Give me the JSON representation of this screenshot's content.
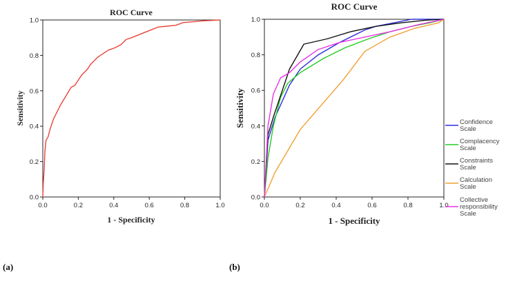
{
  "chart_data": [
    {
      "panel_label": "(a)",
      "type": "line",
      "title": "ROC Curve",
      "xlabel": "1 - Specificity",
      "ylabel": "Sensitivity",
      "xlim": [
        0,
        1
      ],
      "ylim": [
        0,
        1
      ],
      "x_ticks": [
        "0.0",
        "0.2",
        "0.4",
        "0.6",
        "0.8",
        "1.0"
      ],
      "y_ticks": [
        "0.0",
        "0.2",
        "0.4",
        "0.6",
        "0.8",
        "1.0"
      ],
      "grid": false,
      "series": [
        {
          "name": "ROC",
          "color": "#e8433a",
          "x": [
            0,
            0.003,
            0.008,
            0.012,
            0.018,
            0.03,
            0.04,
            0.05,
            0.06,
            0.08,
            0.1,
            0.13,
            0.16,
            0.18,
            0.2,
            0.22,
            0.25,
            0.27,
            0.29,
            0.31,
            0.34,
            0.37,
            0.4,
            0.44,
            0.47,
            0.5,
            0.55,
            0.6,
            0.65,
            0.7,
            0.75,
            0.79,
            0.85,
            0.9,
            1.0
          ],
          "y": [
            0,
            0.08,
            0.16,
            0.26,
            0.32,
            0.34,
            0.38,
            0.41,
            0.44,
            0.48,
            0.52,
            0.57,
            0.62,
            0.63,
            0.66,
            0.69,
            0.72,
            0.75,
            0.77,
            0.79,
            0.81,
            0.83,
            0.84,
            0.86,
            0.89,
            0.9,
            0.92,
            0.94,
            0.96,
            0.965,
            0.97,
            0.985,
            0.99,
            0.995,
            1.0
          ]
        }
      ]
    },
    {
      "panel_label": "(b)",
      "type": "line",
      "title": "ROC Curve",
      "xlabel": "1 - Specificity",
      "ylabel": "Sensitivity",
      "xlim": [
        0,
        1
      ],
      "ylim": [
        0,
        1
      ],
      "x_ticks": [
        "0.0",
        "0.2",
        "0.4",
        "0.6",
        "0.8",
        "1.0"
      ],
      "y_ticks": [
        "0.0",
        "0.2",
        "0.4",
        "0.6",
        "0.8",
        "1.0"
      ],
      "grid": false,
      "legend_position": "right",
      "series": [
        {
          "name": "Confidence Scale",
          "legend_lines": [
            "Confidence",
            "Scale"
          ],
          "color": "#2b2bd9",
          "x": [
            0,
            0.02,
            0.06,
            0.1,
            0.14,
            0.2,
            0.3,
            0.42,
            0.56,
            0.62,
            0.72,
            0.82,
            1.0
          ],
          "y": [
            0,
            0.32,
            0.45,
            0.54,
            0.63,
            0.72,
            0.8,
            0.87,
            0.94,
            0.96,
            0.98,
            1.0,
            1.0
          ]
        },
        {
          "name": "Complacency Scale",
          "legend_lines": [
            "Complacency",
            "Scale"
          ],
          "color": "#22cc22",
          "x": [
            0,
            0.02,
            0.05,
            0.09,
            0.13,
            0.2,
            0.33,
            0.45,
            0.58,
            0.7,
            0.82,
            0.92,
            1.0
          ],
          "y": [
            0,
            0.22,
            0.4,
            0.56,
            0.64,
            0.7,
            0.78,
            0.84,
            0.89,
            0.93,
            0.96,
            0.98,
            1.0
          ]
        },
        {
          "name": "Constraints Scale",
          "legend_lines": [
            "Constraints",
            "Scale"
          ],
          "color": "#111111",
          "x": [
            0,
            0.02,
            0.05,
            0.1,
            0.14,
            0.22,
            0.35,
            0.48,
            0.62,
            0.76,
            0.9,
            1.0
          ],
          "y": [
            0,
            0.35,
            0.45,
            0.6,
            0.72,
            0.86,
            0.89,
            0.93,
            0.96,
            0.98,
            0.995,
            1.0
          ]
        },
        {
          "name": "Calculation Scale",
          "legend_lines": [
            "Calculation",
            "Scale"
          ],
          "color": "#f0a030",
          "x": [
            0,
            0.06,
            0.2,
            0.32,
            0.44,
            0.56,
            0.7,
            0.84,
            0.97,
            1.0
          ],
          "y": [
            0,
            0.14,
            0.38,
            0.52,
            0.66,
            0.82,
            0.9,
            0.95,
            0.98,
            1.0
          ]
        },
        {
          "name": "Collective responsibility Scale",
          "legend_lines": [
            "Collective",
            "responsibility",
            "Scale"
          ],
          "color": "#e632e6",
          "x": [
            0,
            0.02,
            0.05,
            0.09,
            0.14,
            0.2,
            0.3,
            0.42,
            0.56,
            0.7,
            0.86,
            1.0
          ],
          "y": [
            0,
            0.4,
            0.58,
            0.67,
            0.7,
            0.76,
            0.83,
            0.87,
            0.9,
            0.93,
            0.97,
            1.0
          ]
        }
      ]
    }
  ]
}
